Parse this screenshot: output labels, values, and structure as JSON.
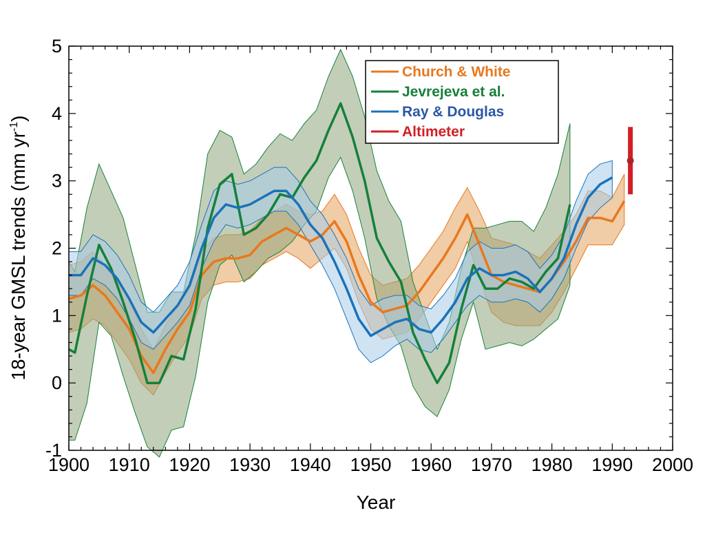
{
  "chart_data": {
    "type": "line",
    "xlabel": "Year",
    "ylabel_prefix": "18-year GMSL trends (mm yr",
    "ylabel_sup": "-1",
    "ylabel_suffix": ")",
    "xlim": [
      1900,
      2000
    ],
    "ylim": [
      -1,
      5
    ],
    "x_ticks": [
      "1900",
      "1910",
      "1920",
      "1930",
      "1940",
      "1950",
      "1960",
      "1970",
      "1980",
      "1990",
      "2000"
    ],
    "y_ticks": [
      "-1",
      "0",
      "1",
      "2",
      "3",
      "4",
      "5"
    ],
    "grid": false,
    "legend_position": "top-center",
    "series": [
      {
        "name": "Church & White",
        "color": "#e8781e",
        "fill": "#e3a25e",
        "text_color": "#e8781e",
        "x": [
          1900,
          1902,
          1904,
          1906,
          1908,
          1910,
          1912,
          1914,
          1916,
          1918,
          1920,
          1922,
          1924,
          1926,
          1928,
          1930,
          1932,
          1934,
          1936,
          1938,
          1940,
          1942,
          1944,
          1946,
          1948,
          1950,
          1952,
          1954,
          1956,
          1958,
          1960,
          1962,
          1964,
          1966,
          1968,
          1970,
          1972,
          1974,
          1976,
          1978,
          1980,
          1982,
          1984,
          1986,
          1988,
          1990,
          1992
        ],
        "values": [
          1.25,
          1.3,
          1.45,
          1.3,
          1.05,
          0.8,
          0.4,
          0.15,
          0.5,
          0.8,
          1.05,
          1.6,
          1.8,
          1.85,
          1.85,
          1.9,
          2.1,
          2.2,
          2.3,
          2.2,
          2.1,
          2.2,
          2.4,
          2.1,
          1.6,
          1.2,
          1.05,
          1.1,
          1.15,
          1.35,
          1.6,
          1.85,
          2.15,
          2.5,
          2.05,
          1.6,
          1.5,
          1.45,
          1.4,
          1.35,
          1.55,
          1.8,
          2.1,
          2.45,
          2.45,
          2.4,
          2.7
        ],
        "lower": [
          0.75,
          0.8,
          0.95,
          0.85,
          0.6,
          0.35,
          0.0,
          -0.18,
          0.15,
          0.45,
          0.7,
          1.25,
          1.45,
          1.5,
          1.5,
          1.55,
          1.75,
          1.85,
          1.95,
          1.85,
          1.7,
          1.85,
          2.0,
          1.7,
          1.2,
          0.8,
          0.65,
          0.7,
          0.75,
          0.95,
          1.2,
          1.45,
          1.7,
          2.1,
          1.55,
          1.05,
          0.9,
          0.85,
          0.85,
          0.85,
          1.05,
          1.35,
          1.7,
          2.05,
          2.05,
          2.05,
          2.35
        ],
        "upper": [
          1.75,
          1.8,
          1.95,
          1.75,
          1.5,
          1.25,
          0.8,
          0.5,
          0.85,
          1.15,
          1.4,
          1.95,
          2.15,
          2.2,
          2.2,
          2.25,
          2.45,
          2.55,
          2.65,
          2.55,
          2.5,
          2.55,
          2.8,
          2.5,
          2.0,
          1.6,
          1.45,
          1.5,
          1.55,
          1.75,
          2.0,
          2.25,
          2.6,
          2.9,
          2.55,
          2.15,
          2.1,
          2.05,
          1.95,
          1.85,
          2.05,
          2.25,
          2.5,
          2.85,
          2.85,
          2.75,
          3.1
        ]
      },
      {
        "name": "Jevrejeva et al.",
        "color": "#15803a",
        "fill": "#91a67e",
        "text_color": "#15803a",
        "x": [
          1900,
          1901,
          1903,
          1905,
          1907,
          1909,
          1911,
          1913,
          1915,
          1917,
          1919,
          1921,
          1923,
          1925,
          1927,
          1929,
          1931,
          1933,
          1935,
          1937,
          1939,
          1941,
          1943,
          1945,
          1947,
          1949,
          1951,
          1953,
          1955,
          1957,
          1959,
          1961,
          1963,
          1965,
          1967,
          1969,
          1971,
          1973,
          1975,
          1977,
          1979,
          1981,
          1983
        ],
        "values": [
          0.5,
          0.45,
          1.3,
          2.05,
          1.7,
          1.2,
          0.65,
          0.0,
          0.0,
          0.4,
          0.35,
          1.1,
          2.3,
          2.95,
          3.1,
          2.2,
          2.3,
          2.5,
          2.8,
          2.75,
          3.05,
          3.3,
          3.75,
          4.15,
          3.65,
          3.0,
          2.15,
          1.8,
          1.5,
          0.75,
          0.35,
          0.0,
          0.3,
          1.1,
          1.75,
          1.4,
          1.4,
          1.55,
          1.5,
          1.4,
          1.65,
          1.85,
          2.65
        ],
        "lower": [
          -0.85,
          -0.85,
          -0.3,
          0.9,
          0.7,
          0.1,
          -0.45,
          -0.95,
          -1.1,
          -0.7,
          -0.65,
          0.1,
          1.2,
          1.75,
          1.9,
          1.5,
          1.65,
          1.85,
          1.95,
          2.1,
          2.35,
          2.55,
          3.05,
          3.35,
          2.85,
          2.15,
          1.25,
          0.85,
          0.55,
          -0.05,
          -0.35,
          -0.5,
          -0.1,
          0.65,
          1.2,
          0.5,
          0.55,
          0.6,
          0.55,
          0.65,
          0.8,
          0.95,
          1.45
        ],
        "upper": [
          1.8,
          1.65,
          2.6,
          3.25,
          2.85,
          2.45,
          1.75,
          1.05,
          1.05,
          1.35,
          1.35,
          2.2,
          3.4,
          3.75,
          3.65,
          3.1,
          3.25,
          3.5,
          3.7,
          3.6,
          3.85,
          4.05,
          4.55,
          4.95,
          4.55,
          3.95,
          3.15,
          2.7,
          2.4,
          1.5,
          1.0,
          0.5,
          0.9,
          1.7,
          2.3,
          2.3,
          2.35,
          2.4,
          2.4,
          2.25,
          2.6,
          3.1,
          3.85
        ]
      },
      {
        "name": "Ray & Douglas",
        "color": "#1a72b8",
        "fill": "#a8ccea",
        "text_color": "#2b57a6",
        "x": [
          1900,
          1902,
          1904,
          1906,
          1908,
          1910,
          1912,
          1914,
          1916,
          1918,
          1920,
          1922,
          1924,
          1926,
          1928,
          1930,
          1932,
          1934,
          1936,
          1938,
          1940,
          1942,
          1944,
          1946,
          1948,
          1950,
          1952,
          1954,
          1956,
          1958,
          1960,
          1962,
          1964,
          1966,
          1968,
          1970,
          1972,
          1974,
          1976,
          1978,
          1980,
          1982,
          1984,
          1986,
          1988,
          1990
        ],
        "values": [
          1.6,
          1.6,
          1.85,
          1.75,
          1.55,
          1.25,
          0.9,
          0.75,
          0.95,
          1.15,
          1.45,
          2.0,
          2.45,
          2.65,
          2.6,
          2.65,
          2.75,
          2.85,
          2.85,
          2.65,
          2.35,
          2.15,
          1.8,
          1.4,
          0.95,
          0.7,
          0.8,
          0.9,
          0.95,
          0.8,
          0.75,
          0.95,
          1.2,
          1.55,
          1.7,
          1.6,
          1.6,
          1.65,
          1.55,
          1.35,
          1.55,
          1.85,
          2.35,
          2.75,
          2.95,
          3.05
        ],
        "lower": [
          1.3,
          1.3,
          1.55,
          1.45,
          1.25,
          0.95,
          0.6,
          0.5,
          0.7,
          0.9,
          1.15,
          1.7,
          2.1,
          2.35,
          2.3,
          2.35,
          2.45,
          2.55,
          2.55,
          2.35,
          2.05,
          1.75,
          1.4,
          0.95,
          0.5,
          0.3,
          0.4,
          0.55,
          0.65,
          0.5,
          0.45,
          0.65,
          0.9,
          1.15,
          1.3,
          1.2,
          1.2,
          1.25,
          1.2,
          1.05,
          1.25,
          1.55,
          2.0,
          2.4,
          2.6,
          2.75
        ],
        "upper": [
          1.95,
          1.95,
          2.2,
          2.1,
          1.9,
          1.6,
          1.2,
          1.05,
          1.25,
          1.45,
          1.8,
          2.35,
          2.85,
          3.0,
          2.95,
          3.0,
          3.1,
          3.2,
          3.2,
          3.0,
          2.7,
          2.5,
          2.2,
          1.85,
          1.4,
          1.15,
          1.25,
          1.3,
          1.3,
          1.15,
          1.1,
          1.3,
          1.55,
          1.95,
          2.1,
          2.0,
          2.0,
          2.05,
          1.95,
          1.7,
          1.9,
          2.2,
          2.7,
          3.1,
          3.25,
          3.3
        ]
      },
      {
        "name": "Altimeter",
        "color": "#d31e25",
        "text_color": "#d31e25",
        "x": 1993,
        "value": 3.3,
        "lower": 2.8,
        "upper": 3.8
      }
    ]
  }
}
